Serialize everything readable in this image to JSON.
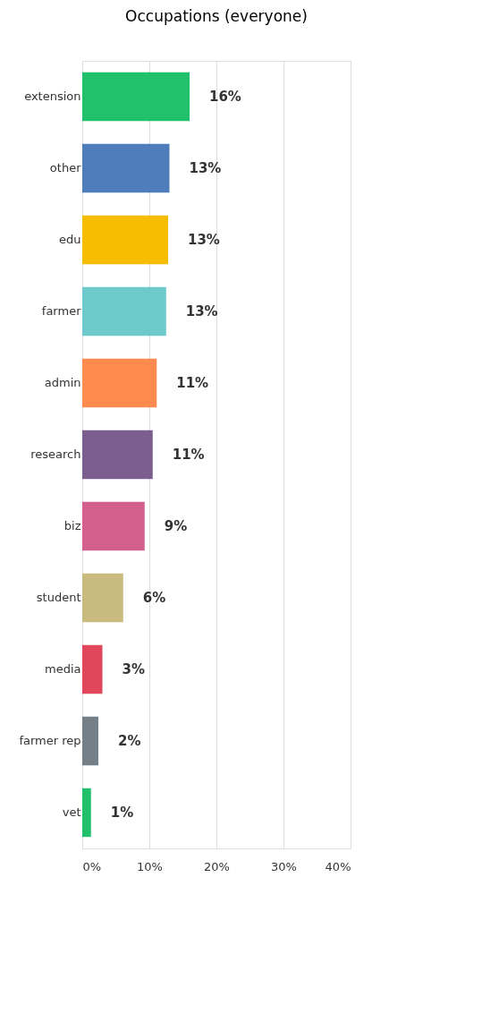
{
  "chart_data": {
    "type": "bar",
    "orientation": "horizontal",
    "title": "Occupations (everyone)",
    "categories": [
      "extension",
      "other",
      "edu",
      "farmer",
      "admin",
      "research",
      "biz",
      "student",
      "media",
      "farmer rep",
      "vet"
    ],
    "values": [
      16.0,
      13.0,
      12.8,
      12.5,
      11.1,
      10.5,
      9.3,
      6.1,
      3.0,
      2.4,
      1.3
    ],
    "colors": [
      "#21c16b",
      "#4f7cba",
      "#f7bd00",
      "#6ccacc",
      "#ff8b4f",
      "#7c5e8e",
      "#d35f8f",
      "#c9bb7e",
      "#e0475a",
      "#747f88",
      "#21c16b"
    ],
    "value_labels": [
      "16%",
      "13%",
      "13%",
      "13%",
      "11%",
      "11%",
      "9%",
      "6%",
      "3%",
      "2%",
      "1%"
    ],
    "xlim": [
      0,
      40
    ],
    "xticks": [
      {
        "value": 0,
        "label": "0%"
      },
      {
        "value": 10,
        "label": "10%"
      },
      {
        "value": 20,
        "label": "20%"
      },
      {
        "value": 30,
        "label": "30%"
      },
      {
        "value": 40,
        "label": "40%"
      }
    ],
    "grid": "x"
  }
}
